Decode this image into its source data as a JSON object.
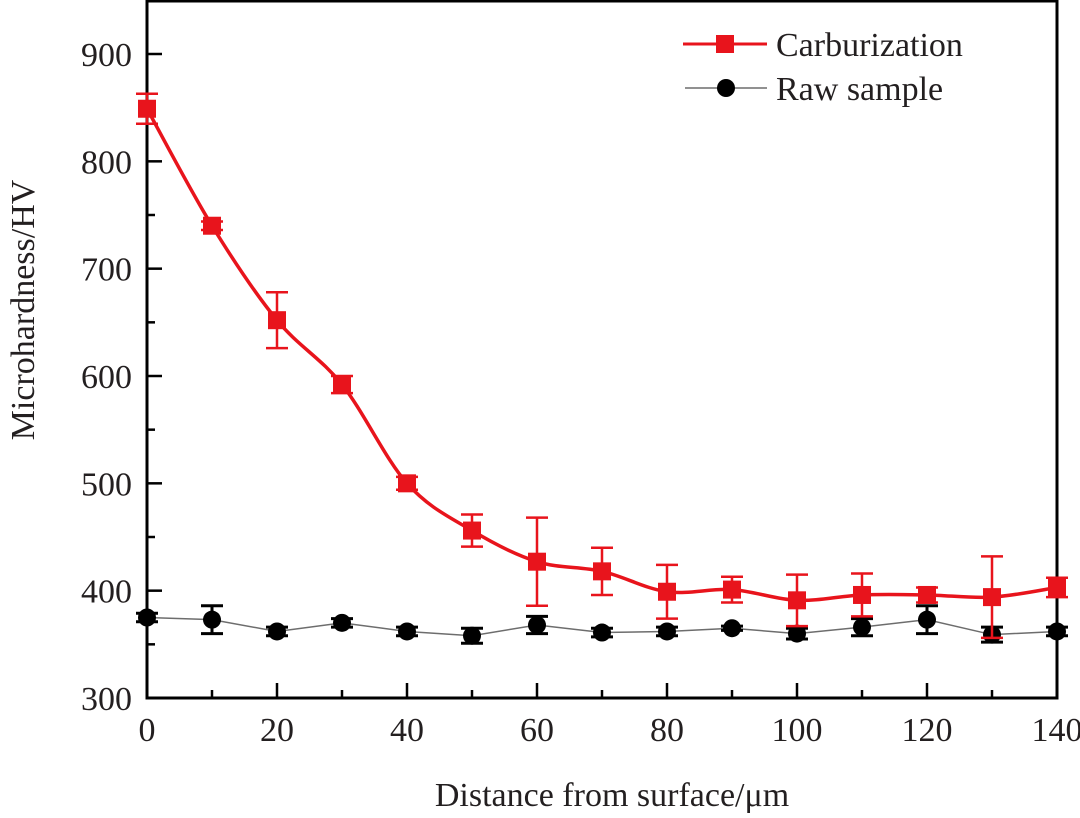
{
  "chart_data": {
    "type": "line",
    "title": "",
    "xlabel": "Distance from surface/μm",
    "ylabel": "Microhardness/HV",
    "xlim": [
      0,
      140
    ],
    "ylim": [
      300,
      940
    ],
    "x_major_ticks": [
      0,
      20,
      40,
      60,
      80,
      100,
      120,
      140
    ],
    "x_minor_ticks": [
      10,
      30,
      50,
      70,
      90,
      110,
      130
    ],
    "y_major_ticks": [
      300,
      400,
      500,
      600,
      700,
      800,
      900
    ],
    "y_minor_ticks": [
      350,
      450,
      550,
      650,
      750,
      850
    ],
    "x_tick_labels": [
      "0",
      "20",
      "40",
      "60",
      "80",
      "100",
      "120",
      "140"
    ],
    "y_tick_labels": [
      "300",
      "400",
      "500",
      "600",
      "700",
      "800",
      "900"
    ],
    "grid": false,
    "legend_position": "top-right",
    "x": [
      0,
      10,
      20,
      30,
      40,
      50,
      60,
      70,
      80,
      90,
      100,
      110,
      120,
      130,
      140
    ],
    "series": [
      {
        "name": "Carburization",
        "color": "#e8141c",
        "marker": "square",
        "line_style": "smooth",
        "values": [
          849,
          740,
          652,
          592,
          500,
          456,
          427,
          418,
          399,
          401,
          391,
          396,
          396,
          394,
          403
        ],
        "errors": [
          14,
          4,
          26,
          8,
          6,
          15,
          41,
          22,
          25,
          12,
          24,
          20,
          7,
          38,
          9
        ]
      },
      {
        "name": "Raw sample",
        "color": "#000000",
        "line_color": "#6d6d6d",
        "marker": "circle",
        "line_style": "straight",
        "values": [
          375,
          373,
          362,
          370,
          362,
          358,
          368,
          361,
          362,
          365,
          360,
          366,
          373,
          359,
          362
        ],
        "errors": [
          4,
          13,
          4,
          4,
          4,
          7,
          8,
          4,
          4,
          2,
          5,
          8,
          13,
          7,
          4
        ]
      }
    ]
  }
}
